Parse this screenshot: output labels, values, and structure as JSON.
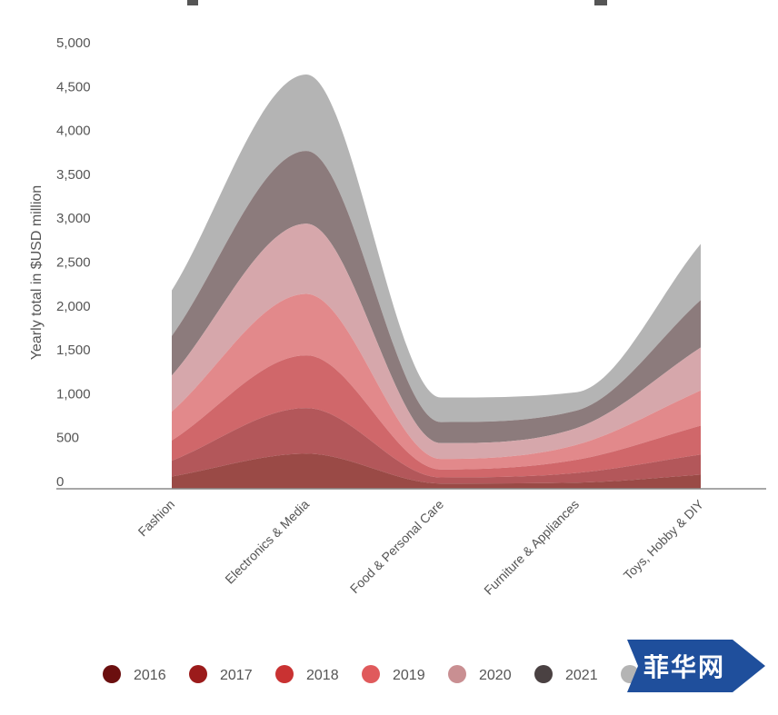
{
  "chart_data": {
    "type": "area",
    "ylabel": "Yearly total in $USD million",
    "ylim": [
      0,
      5000
    ],
    "yticks": [
      0,
      500,
      1000,
      1500,
      2000,
      2500,
      3000,
      3500,
      4000,
      4500,
      5000
    ],
    "ytick_labels": [
      "0",
      "500",
      "1,000",
      "1,500",
      "2,000",
      "2,500",
      "3,000",
      "3,500",
      "4,000",
      "4,500",
      "5,000"
    ],
    "categories": [
      "Fashion",
      "Electronics & Media",
      "Food & Personal Care",
      "Furniture & Appliances",
      "Toys, Hobby & DIY"
    ],
    "stacked": true,
    "grid": false,
    "legend_position": "bottom",
    "series": [
      {
        "name": "2016",
        "values": [
          140,
          400,
          60,
          70,
          160
        ],
        "fill": "#9a4a46",
        "legend_color": "#6b0f0f"
      },
      {
        "name": "2017",
        "values": [
          180,
          520,
          70,
          110,
          230
        ],
        "fill": "#b3575a",
        "legend_color": "#9b1b1b"
      },
      {
        "name": "2018",
        "values": [
          230,
          600,
          90,
          150,
          330
        ],
        "fill": "#d0676a",
        "legend_color": "#c93232"
      },
      {
        "name": "2019",
        "values": [
          330,
          700,
          120,
          170,
          400
        ],
        "fill": "#e2898b",
        "legend_color": "#e05a5c"
      },
      {
        "name": "2020",
        "values": [
          410,
          800,
          180,
          190,
          490
        ],
        "fill": "#d6a7ab",
        "legend_color": "#c98f92"
      },
      {
        "name": "2021",
        "values": [
          450,
          830,
          240,
          200,
          540
        ],
        "fill": "#8c7b7c",
        "legend_color": "#4a4142"
      },
      {
        "name": "",
        "values": [
          520,
          870,
          280,
          210,
          640
        ],
        "fill": "#b4b4b4",
        "legend_color": "#b4b4b4"
      }
    ]
  },
  "watermark": {
    "text": "菲华网",
    "color": "#1f4f9c"
  }
}
